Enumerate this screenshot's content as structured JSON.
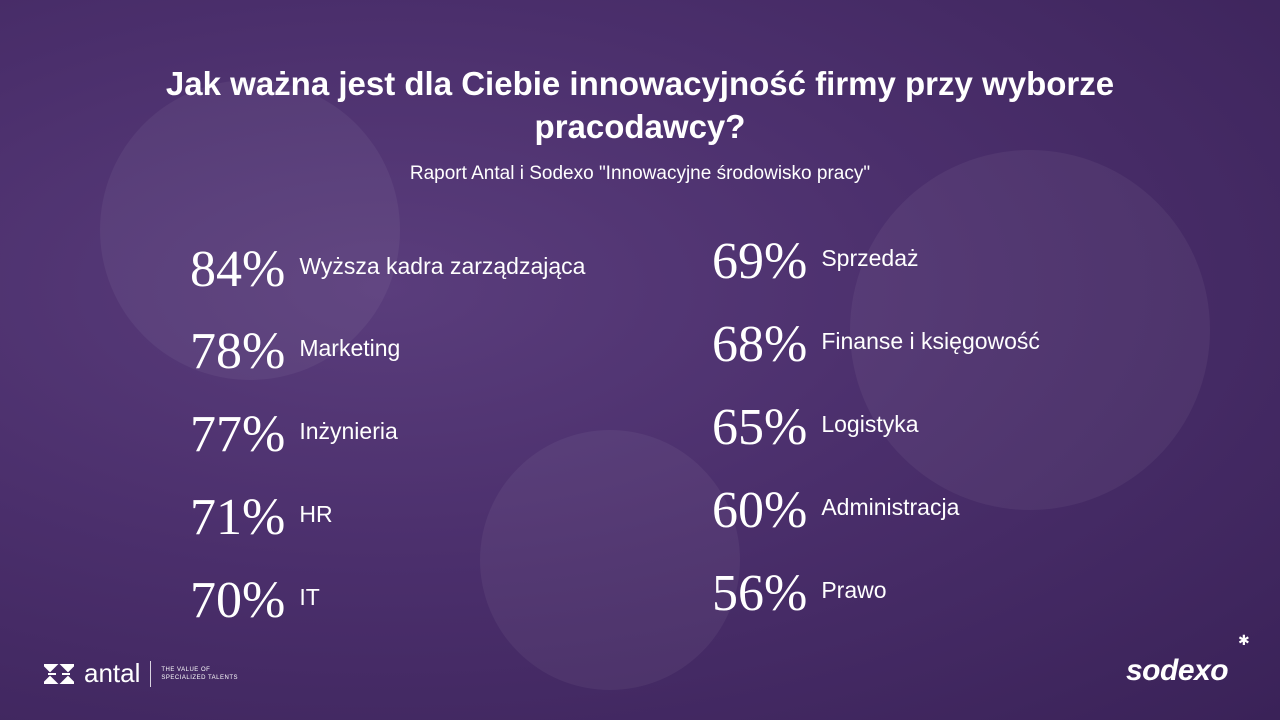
{
  "title": "Jak ważna jest dla Ciebie innowacyjność firmy przy wyborze pracodawcy?",
  "subtitle": "Raport Antal i Sodexo \"Innowacyjne środowisko pracy\"",
  "left_stats": [
    {
      "value": "84%",
      "label": "Wyższa kadra zarządzająca"
    },
    {
      "value": "78%",
      "label": "Marketing"
    },
    {
      "value": "77%",
      "label": "Inżynieria"
    },
    {
      "value": "71%",
      "label": "HR"
    },
    {
      "value": "70%",
      "label": "IT"
    }
  ],
  "right_stats": [
    {
      "value": "69%",
      "label": "Sprzedaż"
    },
    {
      "value": "68%",
      "label": "Finanse i księgowość"
    },
    {
      "value": "65%",
      "label": "Logistyka"
    },
    {
      "value": "60%",
      "label": "Administracja"
    },
    {
      "value": "56%",
      "label": "Prawo"
    }
  ],
  "footer": {
    "antal_logo": "antal",
    "antal_tagline": "THE VALUE OF SPECIALIZED TALENTS",
    "sodexo_logo": "sodexo"
  },
  "colors": {
    "background": "#4b2f6c",
    "text": "#ffffff"
  }
}
